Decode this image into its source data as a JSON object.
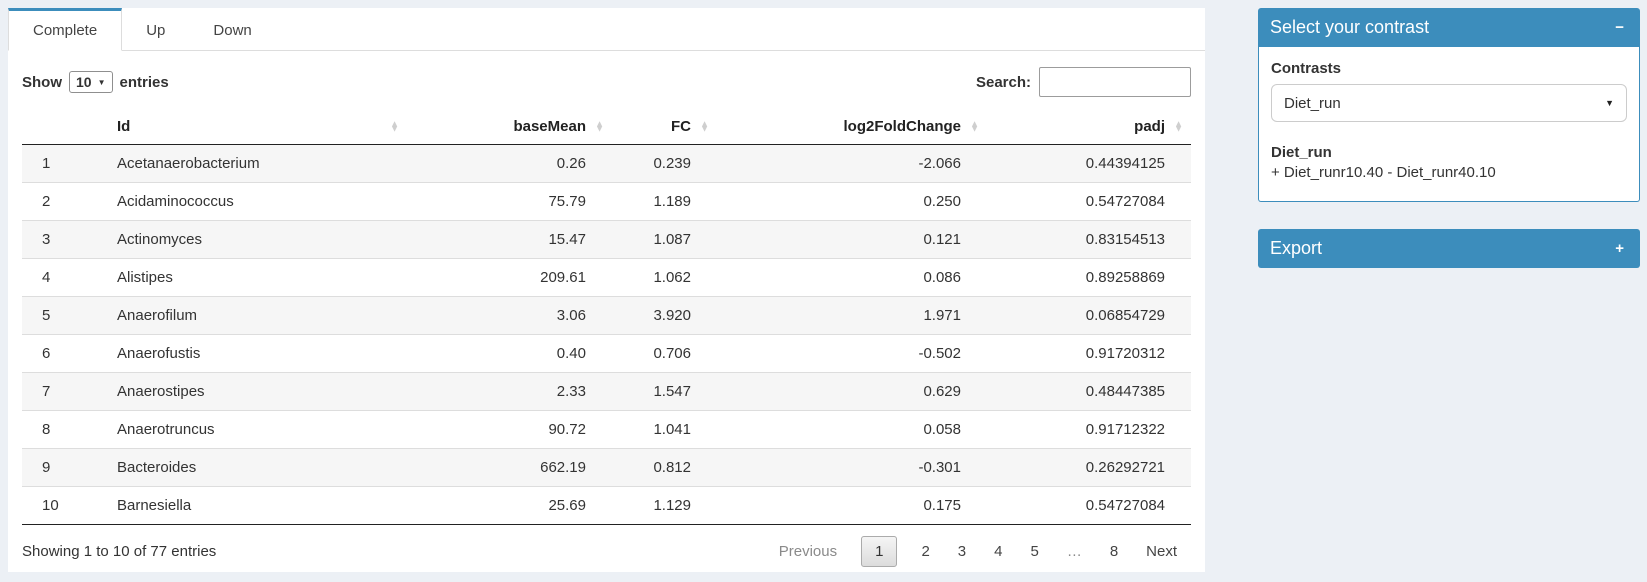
{
  "tabs": [
    {
      "label": "Complete",
      "active": true
    },
    {
      "label": "Up",
      "active": false
    },
    {
      "label": "Down",
      "active": false
    }
  ],
  "controls": {
    "show_label": "Show",
    "page_length": "10",
    "entries_label": "entries",
    "search_label": "Search:",
    "search_value": ""
  },
  "table": {
    "columns": [
      "Id",
      "baseMean",
      "FC",
      "log2FoldChange",
      "padj"
    ],
    "rows": [
      {
        "n": "1",
        "id": "Acetanaerobacterium",
        "baseMean": "0.26",
        "fc": "0.239",
        "log2FoldChange": "-2.066",
        "padj": "0.44394125"
      },
      {
        "n": "2",
        "id": "Acidaminococcus",
        "baseMean": "75.79",
        "fc": "1.189",
        "log2FoldChange": "0.250",
        "padj": "0.54727084"
      },
      {
        "n": "3",
        "id": "Actinomyces",
        "baseMean": "15.47",
        "fc": "1.087",
        "log2FoldChange": "0.121",
        "padj": "0.83154513"
      },
      {
        "n": "4",
        "id": "Alistipes",
        "baseMean": "209.61",
        "fc": "1.062",
        "log2FoldChange": "0.086",
        "padj": "0.89258869"
      },
      {
        "n": "5",
        "id": "Anaerofilum",
        "baseMean": "3.06",
        "fc": "3.920",
        "log2FoldChange": "1.971",
        "padj": "0.06854729"
      },
      {
        "n": "6",
        "id": "Anaerofustis",
        "baseMean": "0.40",
        "fc": "0.706",
        "log2FoldChange": "-0.502",
        "padj": "0.91720312"
      },
      {
        "n": "7",
        "id": "Anaerostipes",
        "baseMean": "2.33",
        "fc": "1.547",
        "log2FoldChange": "0.629",
        "padj": "0.48447385"
      },
      {
        "n": "8",
        "id": "Anaerotruncus",
        "baseMean": "90.72",
        "fc": "1.041",
        "log2FoldChange": "0.058",
        "padj": "0.91712322"
      },
      {
        "n": "9",
        "id": "Bacteroides",
        "baseMean": "662.19",
        "fc": "0.812",
        "log2FoldChange": "-0.301",
        "padj": "0.26292721"
      },
      {
        "n": "10",
        "id": "Barnesiella",
        "baseMean": "25.69",
        "fc": "1.129",
        "log2FoldChange": "0.175",
        "padj": "0.54727084"
      }
    ]
  },
  "footer": {
    "info": "Showing 1 to 10 of 77 entries",
    "previous_label": "Previous",
    "pages": [
      "1",
      "2",
      "3",
      "4",
      "5",
      "…",
      "8"
    ],
    "active_page": "1",
    "next_label": "Next"
  },
  "contrast_box": {
    "title": "Select your contrast",
    "collapse_icon": "−",
    "contrasts_label": "Contrasts",
    "selected_contrast": "Diet_run",
    "contrast_name": "Diet_run",
    "contrast_detail": "+ Diet_runr10.40 - Diet_runr40.10"
  },
  "export_box": {
    "title": "Export",
    "expand_icon": "+"
  },
  "icons": {
    "sort_asc": "▲",
    "sort_desc": "▼",
    "caret_down": "▼"
  },
  "colors": {
    "accent_blue": "#3c8dbc",
    "page_background": "#ecf0f5",
    "row_stripe": "#f6f6f6"
  }
}
